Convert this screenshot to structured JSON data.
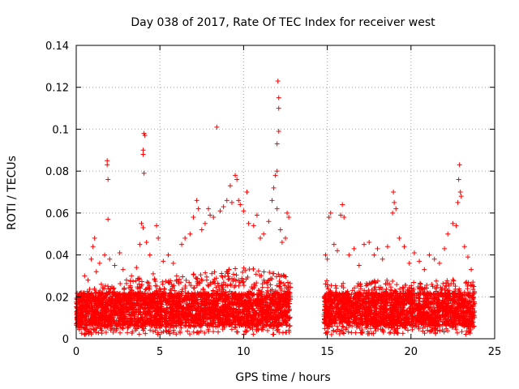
{
  "chart_data": {
    "type": "scatter",
    "title": "Day 038 of 2017, Rate Of TEC Index for receiver west",
    "xlabel": "GPS time / hours",
    "ylabel": "ROTI / TECUs",
    "xlim": [
      0,
      25
    ],
    "ylim": [
      0,
      0.14
    ],
    "xticks": [
      0,
      5,
      10,
      15,
      20,
      25
    ],
    "xtick_labels": [
      "0",
      "5",
      "10",
      "15",
      "20",
      "25"
    ],
    "yticks": [
      0,
      0.02,
      0.04,
      0.06,
      0.08,
      0.1,
      0.12,
      0.14
    ],
    "ytick_labels": [
      "0",
      "0.02",
      "0.04",
      "0.06",
      "0.08",
      "0.1",
      "0.12",
      "0.14"
    ],
    "grid": true,
    "marker": "+",
    "color": "#ff0000",
    "series": [
      {
        "name": "receiver west",
        "points": [
          [
            0.1,
            0.02
          ],
          [
            0.2,
            0.016
          ],
          [
            0.3,
            0.022
          ],
          [
            0.5,
            0.03
          ],
          [
            0.7,
            0.028
          ],
          [
            0.9,
            0.038
          ],
          [
            1.0,
            0.044
          ],
          [
            1.1,
            0.048
          ],
          [
            1.2,
            0.032
          ],
          [
            1.4,
            0.036
          ],
          [
            1.5,
            0.026
          ],
          [
            1.7,
            0.04
          ],
          [
            1.85,
            0.085
          ],
          [
            1.85,
            0.083
          ],
          [
            1.9,
            0.076
          ],
          [
            1.9,
            0.057
          ],
          [
            2.0,
            0.038
          ],
          [
            2.3,
            0.035
          ],
          [
            2.6,
            0.041
          ],
          [
            2.8,
            0.033
          ],
          [
            3.0,
            0.028
          ],
          [
            3.3,
            0.03
          ],
          [
            3.6,
            0.034
          ],
          [
            3.8,
            0.045
          ],
          [
            3.9,
            0.055
          ],
          [
            4.0,
            0.053
          ],
          [
            4.05,
            0.098
          ],
          [
            4.1,
            0.097
          ],
          [
            4.0,
            0.09
          ],
          [
            4.0,
            0.088
          ],
          [
            4.05,
            0.079
          ],
          [
            4.2,
            0.046
          ],
          [
            4.4,
            0.04
          ],
          [
            4.6,
            0.031
          ],
          [
            4.8,
            0.054
          ],
          [
            4.9,
            0.048
          ],
          [
            5.2,
            0.037
          ],
          [
            5.5,
            0.04
          ],
          [
            5.8,
            0.036
          ],
          [
            6.0,
            0.03
          ],
          [
            6.3,
            0.045
          ],
          [
            6.5,
            0.048
          ],
          [
            6.8,
            0.05
          ],
          [
            7.0,
            0.058
          ],
          [
            7.2,
            0.066
          ],
          [
            7.3,
            0.062
          ],
          [
            7.5,
            0.052
          ],
          [
            7.7,
            0.055
          ],
          [
            7.9,
            0.062
          ],
          [
            8.0,
            0.059
          ],
          [
            8.2,
            0.058
          ],
          [
            8.4,
            0.101
          ],
          [
            8.6,
            0.061
          ],
          [
            8.8,
            0.063
          ],
          [
            9.0,
            0.066
          ],
          [
            9.2,
            0.073
          ],
          [
            9.3,
            0.065
          ],
          [
            9.5,
            0.078
          ],
          [
            9.6,
            0.076
          ],
          [
            9.7,
            0.066
          ],
          [
            9.8,
            0.064
          ],
          [
            10.0,
            0.061
          ],
          [
            10.2,
            0.07
          ],
          [
            10.3,
            0.055
          ],
          [
            10.6,
            0.054
          ],
          [
            10.8,
            0.059
          ],
          [
            11.0,
            0.048
          ],
          [
            11.2,
            0.05
          ],
          [
            11.5,
            0.056
          ],
          [
            11.7,
            0.066
          ],
          [
            11.8,
            0.072
          ],
          [
            11.9,
            0.078
          ],
          [
            12.0,
            0.08
          ],
          [
            12.0,
            0.093
          ],
          [
            12.1,
            0.099
          ],
          [
            12.1,
            0.11
          ],
          [
            12.1,
            0.115
          ],
          [
            12.05,
            0.123
          ],
          [
            12.0,
            0.062
          ],
          [
            12.2,
            0.052
          ],
          [
            12.3,
            0.046
          ],
          [
            12.5,
            0.048
          ],
          [
            12.6,
            0.06
          ],
          [
            12.7,
            0.058
          ],
          [
            14.9,
            0.04
          ],
          [
            15.0,
            0.038
          ],
          [
            15.1,
            0.058
          ],
          [
            15.2,
            0.06
          ],
          [
            15.4,
            0.045
          ],
          [
            15.6,
            0.042
          ],
          [
            15.8,
            0.059
          ],
          [
            15.9,
            0.064
          ],
          [
            16.0,
            0.058
          ],
          [
            16.3,
            0.04
          ],
          [
            16.6,
            0.043
          ],
          [
            16.9,
            0.035
          ],
          [
            17.2,
            0.045
          ],
          [
            17.5,
            0.046
          ],
          [
            17.8,
            0.04
          ],
          [
            18.0,
            0.043
          ],
          [
            18.3,
            0.038
          ],
          [
            18.6,
            0.044
          ],
          [
            18.9,
            0.06
          ],
          [
            18.95,
            0.07
          ],
          [
            19.0,
            0.065
          ],
          [
            19.1,
            0.062
          ],
          [
            19.3,
            0.048
          ],
          [
            19.6,
            0.044
          ],
          [
            19.9,
            0.036
          ],
          [
            20.2,
            0.041
          ],
          [
            20.5,
            0.037
          ],
          [
            20.8,
            0.033
          ],
          [
            21.1,
            0.04
          ],
          [
            21.4,
            0.038
          ],
          [
            21.7,
            0.036
          ],
          [
            22.0,
            0.043
          ],
          [
            22.2,
            0.05
          ],
          [
            22.5,
            0.055
          ],
          [
            22.7,
            0.054
          ],
          [
            22.8,
            0.065
          ],
          [
            22.85,
            0.076
          ],
          [
            22.9,
            0.083
          ],
          [
            22.95,
            0.07
          ],
          [
            23.0,
            0.068
          ],
          [
            23.2,
            0.044
          ],
          [
            23.4,
            0.039
          ],
          [
            23.6,
            0.033
          ],
          [
            23.7,
            0.027
          ]
        ],
        "dense_band": {
          "segments": [
            [
              0.0,
              12.8
            ],
            [
              14.8,
              23.8
            ]
          ],
          "y_range": [
            0.002,
            0.022
          ],
          "upper_envelope": [
            [
              0.0,
              0.022
            ],
            [
              1.0,
              0.024
            ],
            [
              2.0,
              0.026
            ],
            [
              3.0,
              0.027
            ],
            [
              4.0,
              0.03
            ],
            [
              5.0,
              0.028
            ],
            [
              6.0,
              0.029
            ],
            [
              7.0,
              0.031
            ],
            [
              8.0,
              0.032
            ],
            [
              9.0,
              0.033
            ],
            [
              10.0,
              0.034
            ],
            [
              11.0,
              0.033
            ],
            [
              12.0,
              0.032
            ],
            [
              12.8,
              0.03
            ],
            [
              14.8,
              0.028
            ],
            [
              16.0,
              0.027
            ],
            [
              17.0,
              0.027
            ],
            [
              18.0,
              0.028
            ],
            [
              19.0,
              0.028
            ],
            [
              20.0,
              0.027
            ],
            [
              21.0,
              0.027
            ],
            [
              22.0,
              0.029
            ],
            [
              23.0,
              0.028
            ],
            [
              23.8,
              0.026
            ]
          ]
        }
      }
    ]
  }
}
